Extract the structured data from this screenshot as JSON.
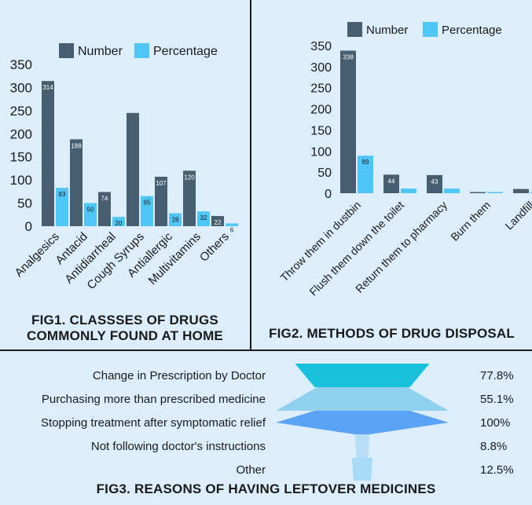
{
  "colors": {
    "number": "#465e70",
    "percentage": "#4fc6f8",
    "background": "#dcedfb",
    "funnel": [
      "#19c2dc",
      "#8fd0ef",
      "#5aa2f4",
      "#b7def4",
      "#a6daf5"
    ]
  },
  "fig1": {
    "title_line1": "FIG1. CLASSSES OF DRUGS",
    "title_line2": "COMMONLY FOUND AT HOME",
    "legend": [
      "Number",
      "Percentage"
    ],
    "chart_data": {
      "type": "bar",
      "categories": [
        "Analgesics",
        "Antacid",
        "Antidiarrheal",
        "Cough Syrups",
        "Antiallergic",
        "Multivitamins",
        "Others"
      ],
      "series": [
        {
          "name": "Number",
          "values": [
            314,
            188,
            74,
            245,
            107,
            120,
            22
          ]
        },
        {
          "name": "Percentage",
          "values": [
            83,
            50,
            20,
            65,
            28,
            32,
            6
          ]
        }
      ],
      "data_labels": {
        "Number": [
          "314",
          "188",
          "74",
          "",
          "107",
          "120",
          "22"
        ],
        "Percentage": [
          "83",
          "50",
          "20",
          "65",
          "28",
          "32",
          "6"
        ]
      },
      "ylim": [
        0,
        350
      ],
      "yticks": [
        0,
        50,
        100,
        150,
        200,
        250,
        300,
        350
      ]
    }
  },
  "fig2": {
    "title": "FIG2. METHODS OF DRUG DISPOSAL",
    "legend": [
      "Number",
      "Percentage"
    ],
    "chart_data": {
      "type": "bar",
      "categories": [
        "Throw them in dustbin",
        "Flush them down the toilet",
        "Return them to pharmacy",
        "Burn them",
        "Landfill"
      ],
      "series": [
        {
          "name": "Number",
          "values": [
            338,
            44,
            43,
            1,
            10
          ]
        },
        {
          "name": "Percentage",
          "values": [
            89,
            11,
            11,
            0.3,
            2.6
          ]
        }
      ],
      "data_labels": {
        "Number": [
          "338",
          "44",
          "43",
          "",
          ""
        ],
        "Percentage": [
          "89",
          "",
          "",
          "",
          ""
        ]
      },
      "ylim": [
        0,
        350
      ],
      "yticks": [
        0,
        50,
        100,
        150,
        200,
        250,
        300,
        350
      ]
    }
  },
  "fig3": {
    "title": "FIG3. REASONS OF HAVING LEFTOVER MEDICINES",
    "chart_data": {
      "type": "funnel",
      "categories": [
        "Change in Prescription by Doctor",
        "Purchasing more than prescribed medicine",
        "Stopping treatment after symptomatic relief",
        "Not following doctor's instructions",
        "Other"
      ],
      "values": [
        77.8,
        55.1,
        100,
        8.8,
        12.5
      ],
      "value_labels": [
        "77.8%",
        "55.1%",
        "100%",
        "8.8%",
        "12.5%"
      ]
    }
  }
}
